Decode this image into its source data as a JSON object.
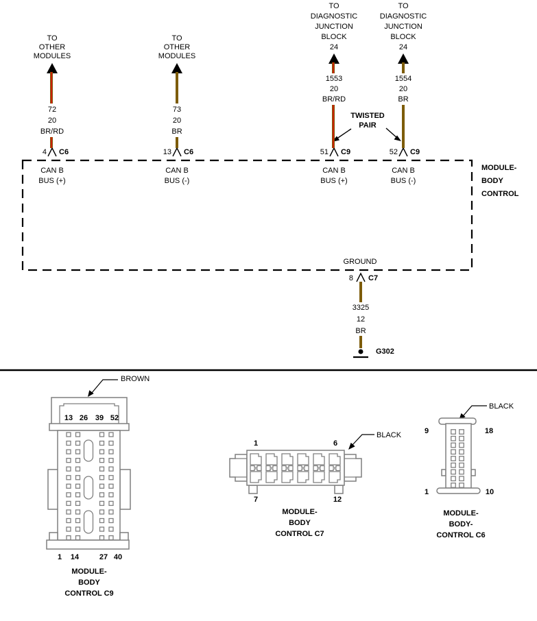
{
  "colors": {
    "wire_brown": "#7d5c0a",
    "wire_red": "#cc2200",
    "connector_outline_gray": "#7f7f7f",
    "line_black": "#000000"
  },
  "schematic": {
    "wire1": {
      "dest": [
        "TO",
        "OTHER",
        "MODULES"
      ],
      "circuit": "72",
      "gauge": "20",
      "code": "BR/RD",
      "pin": "4",
      "conn": "C6",
      "fn": [
        "CAN B",
        "BUS (+)"
      ]
    },
    "wire2": {
      "dest": [
        "TO",
        "OTHER",
        "MODULES"
      ],
      "circuit": "73",
      "gauge": "20",
      "code": "BR",
      "pin": "13",
      "conn": "C6",
      "fn": [
        "CAN B",
        "BUS (-)"
      ]
    },
    "wire3": {
      "dest": [
        "TO",
        "DIAGNOSTIC",
        "JUNCTION",
        "BLOCK",
        "24"
      ],
      "circuit": "1553",
      "gauge": "20",
      "code": "BR/RD",
      "pin": "51",
      "conn": "C9",
      "fn": [
        "CAN B",
        "BUS (+)"
      ]
    },
    "wire4": {
      "dest": [
        "TO",
        "DIAGNOSTIC",
        "JUNCTION",
        "BLOCK",
        "24"
      ],
      "circuit": "1554",
      "gauge": "20",
      "code": "BR",
      "pin": "52",
      "conn": "C9",
      "fn": [
        "CAN B",
        "BUS (-)"
      ]
    },
    "twisted_pair": [
      "TWISTED",
      "PAIR"
    ],
    "module_label": [
      "MODULE-",
      "BODY",
      "CONTROL"
    ],
    "ground_label": "GROUND",
    "ground": {
      "pin": "8",
      "conn": "C7",
      "circuit": "3325",
      "gauge": "12",
      "code": "BR",
      "gid": "G302"
    }
  },
  "connectors": {
    "c9": {
      "color_label": "BROWN",
      "top_pins": [
        "13",
        "26",
        "39",
        "52"
      ],
      "bottom_pins": [
        "1",
        "14",
        "27",
        "40"
      ],
      "name": [
        "MODULE-",
        "BODY",
        "CONTROL C9"
      ]
    },
    "c7": {
      "color_label": "BLACK",
      "pin_tl": "1",
      "pin_tr": "6",
      "pin_bl": "7",
      "pin_br": "12",
      "name": [
        "MODULE-",
        "BODY",
        "CONTROL C7"
      ]
    },
    "c6": {
      "color_label": "BLACK",
      "pin_tl": "9",
      "pin_tr": "18",
      "pin_bl": "1",
      "pin_br": "10",
      "name": [
        "MODULE-",
        "BODY-",
        "CONTROL C6"
      ]
    }
  }
}
